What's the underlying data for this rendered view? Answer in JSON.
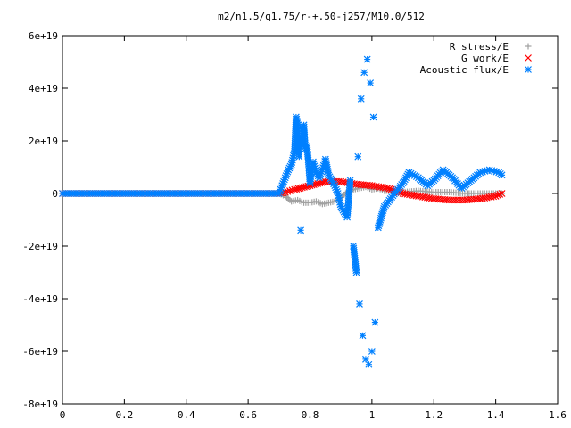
{
  "chart_data": {
    "type": "scatter",
    "title": "m2/n1.5/q1.75/r-+.50-j257/M10.0/512",
    "xlabel": "",
    "ylabel": "",
    "xlim": [
      0,
      1.6
    ],
    "ylim": [
      -8e+19,
      6e+19
    ],
    "x_ticks": [
      0,
      0.2,
      0.4,
      0.6,
      0.8,
      1,
      1.2,
      1.4,
      1.6
    ],
    "x_tick_labels": [
      "0",
      "0.2",
      "0.4",
      "0.6",
      "0.8",
      "1",
      "1.2",
      "1.4",
      "1.6"
    ],
    "y_ticks": [
      -8e+19,
      -6e+19,
      -4e+19,
      -2e+19,
      0,
      2e+19,
      4e+19,
      6e+19
    ],
    "y_tick_labels": [
      "-8e+19",
      "-6e+19",
      "-4e+19",
      "-2e+19",
      "0",
      "2e+19",
      "4e+19",
      "6e+19"
    ],
    "grid": false,
    "legend_position": "top-right",
    "series": [
      {
        "name": "R stress/E",
        "marker": "+",
        "color": "#a0a0a0",
        "x": [
          0.0,
          0.1,
          0.2,
          0.3,
          0.4,
          0.5,
          0.6,
          0.7,
          0.72,
          0.74,
          0.76,
          0.78,
          0.8,
          0.82,
          0.84,
          0.86,
          0.88,
          0.9,
          0.92,
          0.94,
          0.96,
          0.98,
          1.0,
          1.02,
          1.04,
          1.06,
          1.08,
          1.1,
          1.15,
          1.2,
          1.25,
          1.3,
          1.35,
          1.4,
          1.42
        ],
        "y": [
          0,
          0,
          0,
          0,
          0,
          0,
          0,
          0,
          -1e+18,
          -3e+18,
          -2.5e+18,
          -3.5e+18,
          -3.5e+18,
          -3e+18,
          -4e+18,
          -3.5e+18,
          -3e+18,
          -1.5e+18,
          5e+17,
          1.5e+18,
          2e+18,
          2.5e+18,
          1.5e+18,
          2e+18,
          1e+18,
          1e+18,
          5e+17,
          5e+17,
          1e+18,
          5e+17,
          5e+17,
          0.0,
          0.0,
          0.0,
          0.0
        ]
      },
      {
        "name": "G work/E",
        "marker": "x",
        "color": "#ff0000",
        "x": [
          0.0,
          0.1,
          0.2,
          0.3,
          0.4,
          0.5,
          0.6,
          0.7,
          0.72,
          0.75,
          0.8,
          0.85,
          0.9,
          0.95,
          1.0,
          1.05,
          1.1,
          1.15,
          1.2,
          1.25,
          1.3,
          1.35,
          1.4,
          1.42
        ],
        "y": [
          0,
          0,
          0,
          0,
          0,
          0,
          0,
          0,
          5e+17,
          1.5e+18,
          3e+18,
          4.5e+18,
          4.5e+18,
          3.5e+18,
          3e+18,
          2e+18,
          0.0,
          -1e+18,
          -2e+18,
          -2.5e+18,
          -2.5e+18,
          -2e+18,
          -1e+18,
          0.0
        ]
      },
      {
        "name": "Acoustic flux/E",
        "marker": "*",
        "color": "#0080ff",
        "x": [
          0.0,
          0.1,
          0.2,
          0.3,
          0.4,
          0.5,
          0.6,
          0.7,
          0.71,
          0.72,
          0.73,
          0.74,
          0.75,
          0.755,
          0.76,
          0.765,
          0.77,
          0.775,
          0.78,
          0.785,
          0.79,
          0.795,
          0.8,
          0.81,
          0.82,
          0.83,
          0.84,
          0.85,
          0.86,
          0.87,
          0.88,
          0.89,
          0.9,
          0.91,
          0.92,
          0.93,
          0.94,
          0.95,
          0.955,
          0.96,
          0.965,
          0.97,
          0.975,
          0.98,
          0.985,
          0.99,
          0.995,
          1.0,
          1.005,
          1.01,
          1.02,
          1.04,
          1.06,
          1.08,
          1.1,
          1.12,
          1.15,
          1.18,
          1.2,
          1.23,
          1.26,
          1.29,
          1.32,
          1.35,
          1.38,
          1.41,
          1.42
        ],
        "y": [
          0,
          0,
          0,
          0,
          0,
          0,
          0,
          0,
          3e+18,
          6e+18,
          9e+18,
          1.1e+19,
          1.6e+19,
          2.9e+19,
          2.6e+19,
          1.4e+19,
          -1.4e+19,
          1.8e+19,
          2.6e+19,
          1.7e+19,
          1.8e+19,
          1.2e+19,
          4e+18,
          1.2e+19,
          8e+18,
          6e+18,
          9e+18,
          1.3e+19,
          7e+18,
          5e+18,
          3e+18,
          0.0,
          -5e+18,
          -7e+18,
          -9e+18,
          5e+18,
          -2e+19,
          -3e+19,
          1.4e+19,
          -4.2e+19,
          3.6e+19,
          -5.4e+19,
          4.6e+19,
          -6.3e+19,
          5.1e+19,
          -6.5e+19,
          4.2e+19,
          -6e+19,
          2.9e+19,
          -4.9e+19,
          -1.3e+19,
          -5e+18,
          -2e+18,
          1e+18,
          4e+18,
          8e+18,
          6e+18,
          3e+18,
          5e+18,
          9e+18,
          6e+18,
          2e+18,
          5e+18,
          8e+18,
          9e+18,
          8e+18,
          7e+18
        ]
      }
    ]
  }
}
